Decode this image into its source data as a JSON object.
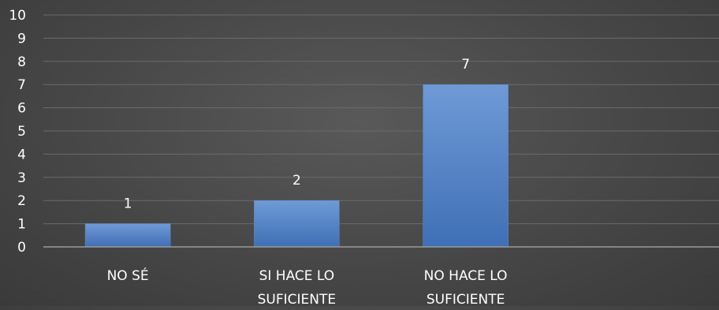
{
  "chart_data": {
    "type": "bar",
    "categories": [
      [
        "NO SÉ"
      ],
      [
        "SI HACE LO",
        "SUFICIENTE"
      ],
      [
        "NO HACE LO",
        "SUFICIENTE"
      ],
      [
        ""
      ]
    ],
    "values": [
      1,
      2,
      7,
      null
    ],
    "data_labels": [
      "1",
      "2",
      "7",
      ""
    ],
    "title": "",
    "xlabel": "",
    "ylabel": "",
    "ylim": [
      0,
      10
    ],
    "yticks": [
      0,
      1,
      2,
      3,
      4,
      5,
      6,
      7,
      8,
      9,
      10
    ],
    "grid": true,
    "legend": "none",
    "colors": {
      "bar_top": "#6f9ad6",
      "bar_bottom": "#3f6fb6",
      "bar_edge": "#5f8ccc",
      "gridline": "#6b6b6b",
      "axis_line": "#9a9a9a",
      "text": "#ffffff"
    }
  }
}
